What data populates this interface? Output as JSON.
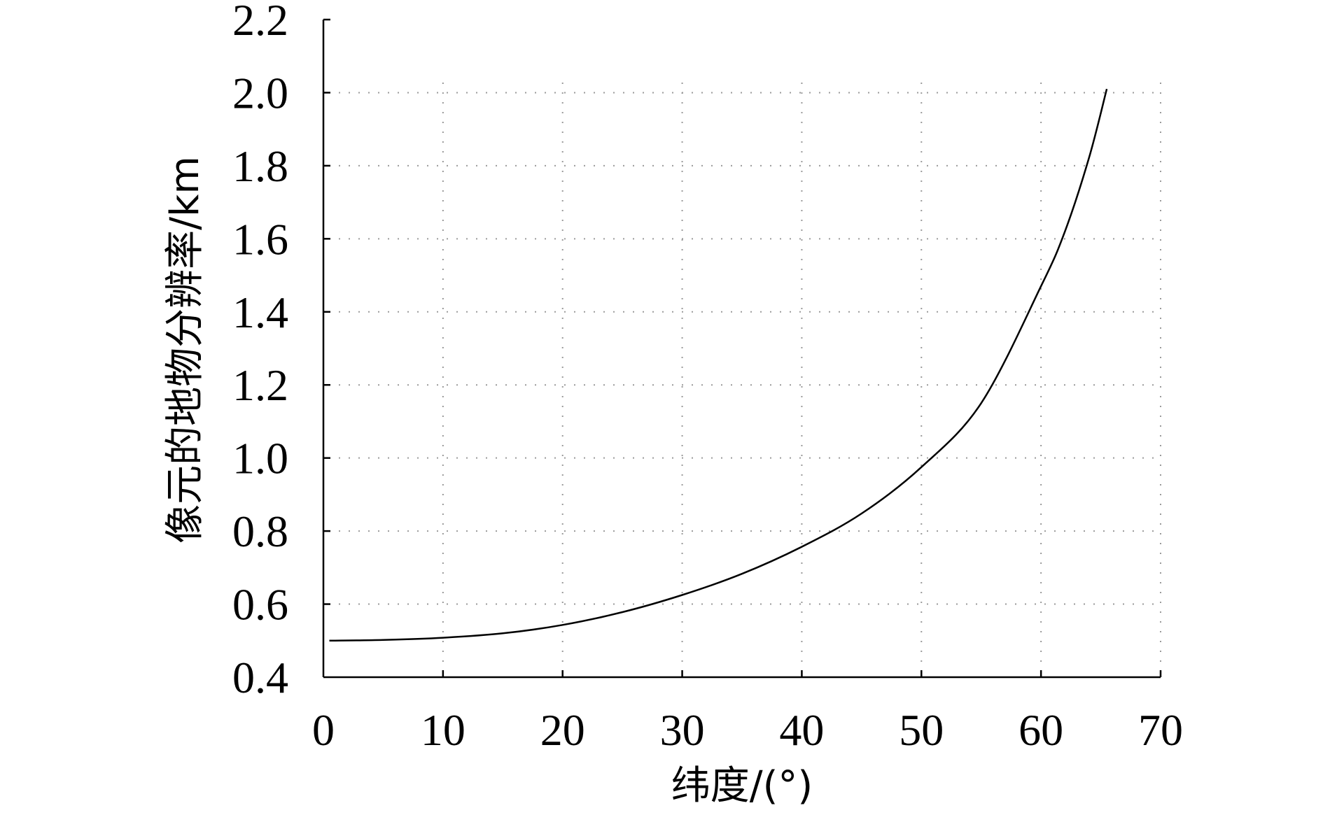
{
  "chart_data": {
    "type": "line",
    "title": "",
    "xlabel": "纬度/(°)",
    "ylabel": "像元的地物分辨率/km",
    "xlim": [
      0,
      70
    ],
    "ylim": [
      0.4,
      2.2
    ],
    "xticks": [
      0,
      10,
      20,
      30,
      40,
      50,
      60,
      70
    ],
    "xtick_labels": [
      "0",
      "10",
      "20",
      "30",
      "40",
      "50",
      "60",
      "70"
    ],
    "yticks": [
      0.4,
      0.6,
      0.8,
      1.0,
      1.2,
      1.4,
      1.6,
      1.8,
      2.0,
      2.2
    ],
    "ytick_labels": [
      "0.4",
      "0.6",
      "0.8",
      "1.0",
      "1.2",
      "1.4",
      "1.6",
      "1.8",
      "2.0",
      "2.2"
    ],
    "grid": "dotted",
    "legend": "none",
    "series": [
      {
        "color": "#000000",
        "x": [
          0.5,
          5,
          10,
          15,
          20,
          25,
          30,
          35,
          40,
          45,
          50,
          55,
          60,
          62,
          64,
          65.5
        ],
        "y": [
          0.5,
          0.502,
          0.508,
          0.52,
          0.543,
          0.578,
          0.625,
          0.683,
          0.757,
          0.848,
          0.975,
          1.15,
          1.47,
          1.62,
          1.82,
          2.01
        ]
      }
    ]
  }
}
